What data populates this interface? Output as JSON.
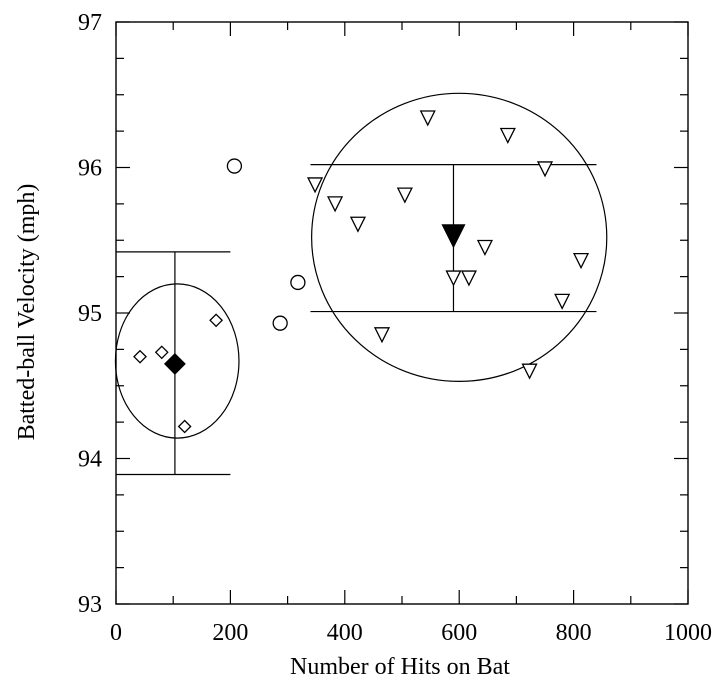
{
  "chart_data": {
    "type": "scatter",
    "title": "",
    "xlabel": "Number of Hits on Bat",
    "ylabel": "Batted-ball Velocity (mph)",
    "xlim": [
      0,
      1000
    ],
    "ylim": [
      93,
      97
    ],
    "x_ticks": [
      "0",
      "200",
      "400",
      "600",
      "800",
      "1000"
    ],
    "y_ticks": [
      "93",
      "94",
      "95",
      "96",
      "97"
    ],
    "x_minor_step": 100,
    "y_minor_step": 0.25,
    "grid": false,
    "series": [
      {
        "marker": "diamond-open",
        "points": [
          {
            "x": 42,
            "y": 94.7
          },
          {
            "x": 80,
            "y": 94.73
          },
          {
            "x": 120,
            "y": 94.22
          },
          {
            "x": 175,
            "y": 94.95
          }
        ]
      },
      {
        "marker": "circle-open",
        "points": [
          {
            "x": 207,
            "y": 96.01
          },
          {
            "x": 287,
            "y": 94.93
          },
          {
            "x": 318,
            "y": 95.21
          }
        ]
      },
      {
        "marker": "triangle-down-open",
        "points": [
          {
            "x": 348,
            "y": 95.88
          },
          {
            "x": 383,
            "y": 95.75
          },
          {
            "x": 423,
            "y": 95.61
          },
          {
            "x": 465,
            "y": 94.85
          },
          {
            "x": 505,
            "y": 95.81
          },
          {
            "x": 545,
            "y": 96.34
          },
          {
            "x": 590,
            "y": 95.24
          },
          {
            "x": 617,
            "y": 95.24
          },
          {
            "x": 645,
            "y": 95.45
          },
          {
            "x": 685,
            "y": 96.22
          },
          {
            "x": 723,
            "y": 94.6
          },
          {
            "x": 750,
            "y": 95.99
          },
          {
            "x": 780,
            "y": 95.08
          },
          {
            "x": 813,
            "y": 95.36
          }
        ]
      }
    ],
    "means": [
      {
        "marker": "diamond-filled",
        "x": 103,
        "y": 94.65,
        "y_low": 93.89,
        "y_high": 95.42,
        "x_low": 0,
        "x_high": 200
      },
      {
        "marker": "triangle-down-filled",
        "x": 590,
        "y": 95.53,
        "y_low": 95.01,
        "y_high": 96.02,
        "x_low": 340,
        "x_high": 840
      }
    ],
    "ellipses": [
      {
        "cx": 107,
        "cy": 94.67,
        "rx": 108,
        "ry": 0.53
      },
      {
        "cx": 600,
        "cy": 95.52,
        "rx": 258,
        "ry": 0.99
      }
    ]
  }
}
